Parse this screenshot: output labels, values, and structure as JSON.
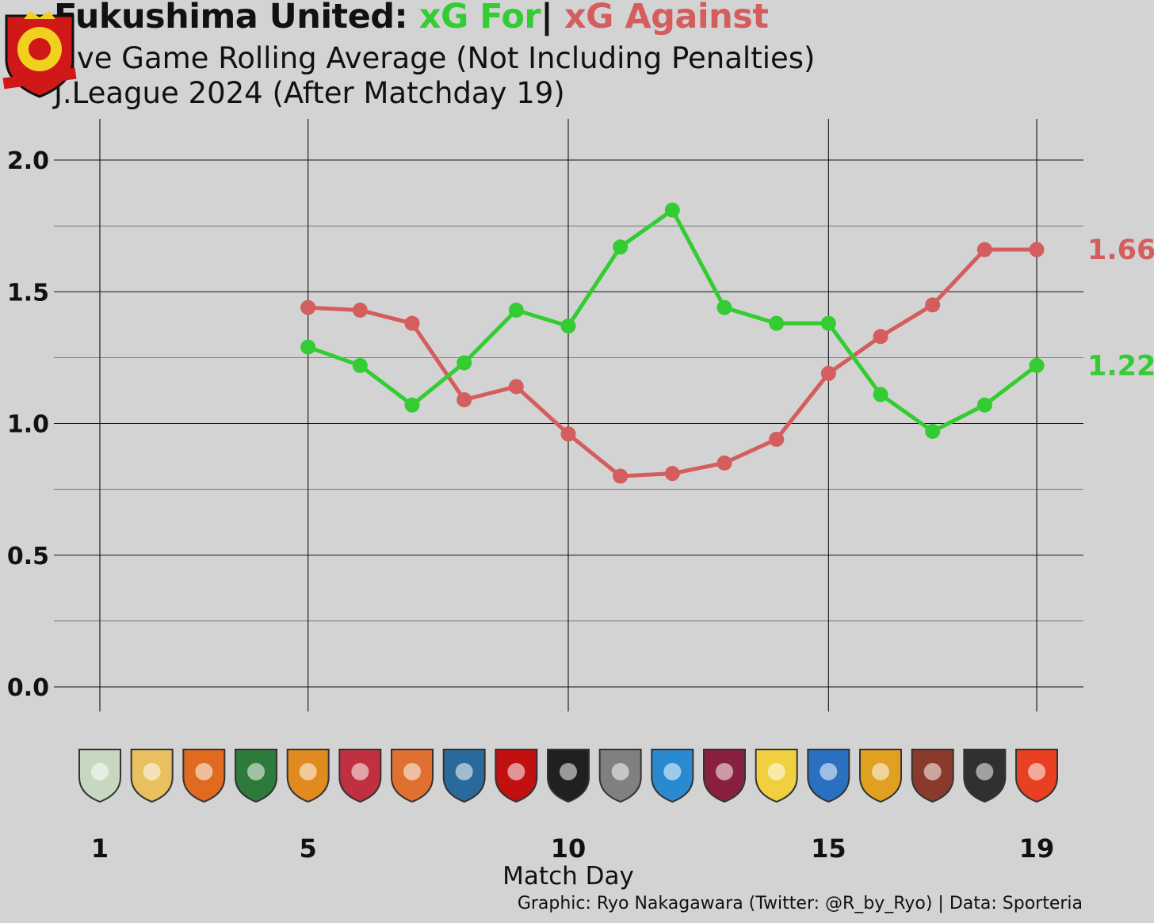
{
  "title": {
    "team": "Fukushima United:",
    "for_label": "xG For",
    "sep": "|",
    "against_label": "xG Against"
  },
  "subtitle1": "Five Game Rolling Average (Not Including Penalties)",
  "subtitle2": "J.League 2024 (After Matchday 19)",
  "caption": "Graphic: Ryo Nakagawara (Twitter: @R_by_Ryo) | Data: Sporteria",
  "logo_text": "FUKUSHIMA UNITED FC",
  "colors": {
    "for": "#33cc33",
    "against": "#d45d5d",
    "background": "#d3d3d3"
  },
  "chart_data": {
    "type": "line",
    "xlabel": "Match Day",
    "ylabel": "",
    "xlim": [
      1,
      19
    ],
    "ylim": [
      0,
      2.0
    ],
    "x_ticks": [
      1,
      5,
      10,
      15,
      19
    ],
    "y_ticks": [
      "0.0",
      "0.5",
      "1.0",
      "1.5",
      "2.0"
    ],
    "grid": true,
    "x": [
      5,
      6,
      7,
      8,
      9,
      10,
      11,
      12,
      13,
      14,
      15,
      16,
      17,
      18,
      19
    ],
    "series": [
      {
        "name": "xG For",
        "color": "#33cc33",
        "values": [
          1.29,
          1.22,
          1.07,
          1.23,
          1.43,
          1.37,
          1.67,
          1.81,
          1.44,
          1.38,
          1.38,
          1.11,
          0.97,
          1.07,
          1.22
        ],
        "end_label": "1.22"
      },
      {
        "name": "xG Against",
        "color": "#d45d5d",
        "values": [
          1.44,
          1.43,
          1.38,
          1.09,
          1.14,
          0.96,
          0.8,
          0.81,
          0.85,
          0.94,
          1.19,
          1.33,
          1.45,
          1.66,
          1.66
        ],
        "end_label": "1.66"
      }
    ],
    "opponent_logo_colors": [
      "#c8d8c0",
      "#e8c060",
      "#e06a20",
      "#2e7a3a",
      "#e08a20",
      "#c03040",
      "#e07030",
      "#2a6a9a",
      "#c01010",
      "#202020",
      "#808080",
      "#2a8ad0",
      "#8a2040",
      "#f0d040",
      "#2a70c0",
      "#e0a020",
      "#8a3a2a",
      "#303030",
      "#e84020"
    ]
  }
}
